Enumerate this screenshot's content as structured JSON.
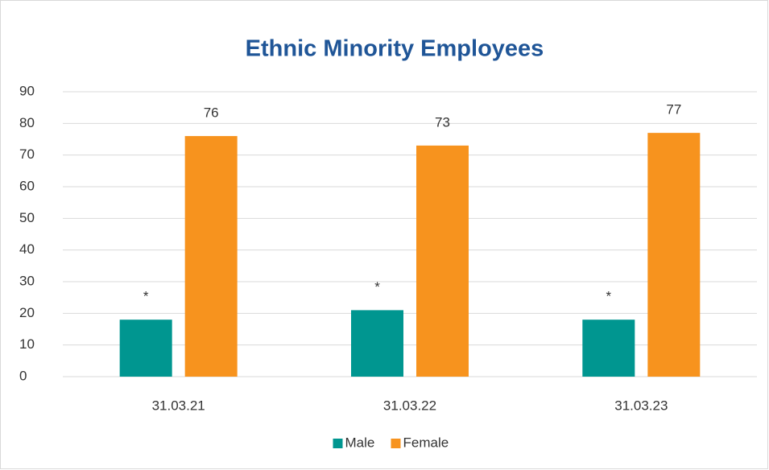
{
  "chart_data": {
    "type": "bar",
    "title": "Ethnic Minority Employees",
    "categories": [
      "31.03.21",
      "31.03.22",
      "31.03.23"
    ],
    "series": [
      {
        "name": "Male",
        "color": "#009690",
        "values": [
          18,
          21,
          18
        ],
        "value_labels": [
          "*",
          "*",
          "*"
        ]
      },
      {
        "name": "Female",
        "color": "#f7931e",
        "values": [
          76,
          73,
          77
        ]
      }
    ],
    "ylim": [
      0,
      90
    ],
    "yticks": [
      0,
      10,
      20,
      30,
      40,
      50,
      60,
      70,
      80,
      90
    ],
    "grid": true,
    "legend": "bottom"
  }
}
